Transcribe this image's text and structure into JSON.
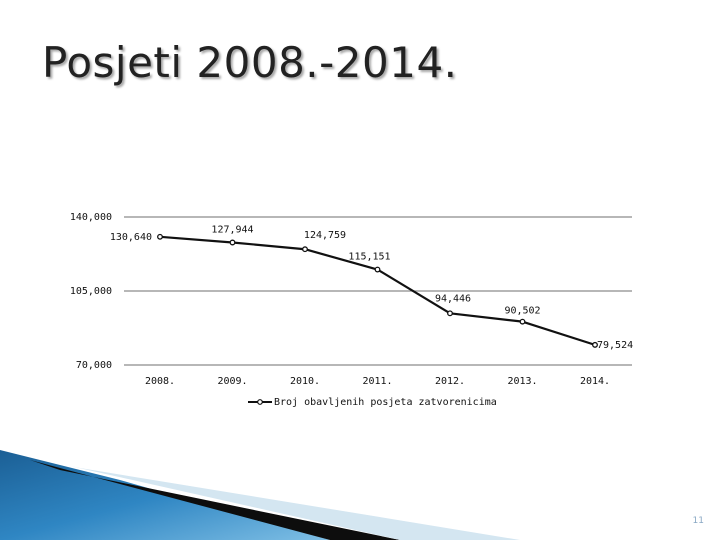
{
  "slide": {
    "title": "Posjeti 2008.-2014.",
    "page_number": "11"
  },
  "chart_data": {
    "type": "line",
    "title": "",
    "xlabel": "",
    "ylabel": "",
    "categories": [
      "2008.",
      "2009.",
      "2010.",
      "2011.",
      "2012.",
      "2013.",
      "2014."
    ],
    "series": [
      {
        "name": "Broj obavljenih posjeta zatvorenicima",
        "values": [
          130640,
          127944,
          124759,
          115151,
          94446,
          90502,
          79524
        ],
        "labels": [
          "130,640",
          "127,944",
          "124,759",
          "115,151",
          "94,446",
          "90,502",
          "79,524"
        ]
      }
    ],
    "yticks": [
      {
        "value": 140000,
        "label": "140,000"
      },
      {
        "value": 105000,
        "label": "105,000"
      },
      {
        "value": 70000,
        "label": "70,000"
      }
    ],
    "ylim": [
      70000,
      140000
    ],
    "grid": true,
    "legend": "bottom",
    "line_color": "#111111",
    "grid_color": "#8c8c8c"
  }
}
